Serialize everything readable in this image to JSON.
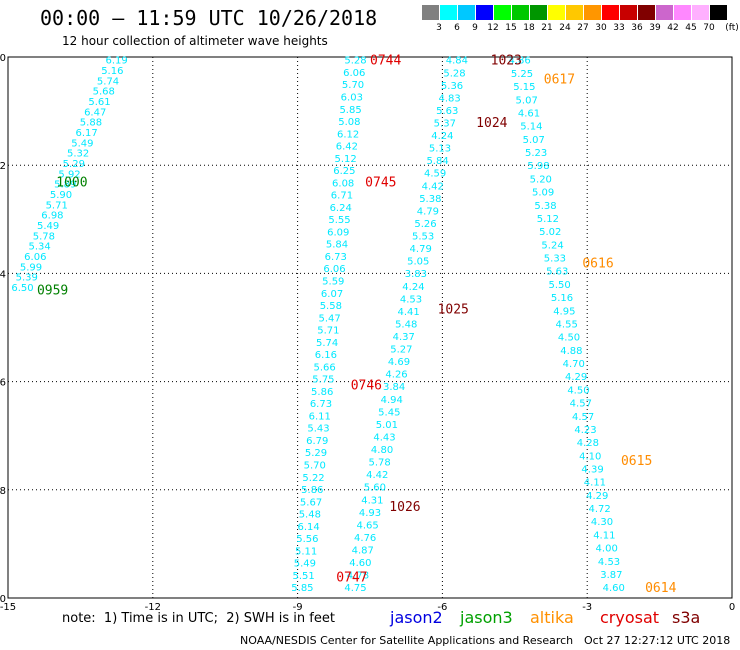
{
  "header": {
    "title": "00:00 – 11:59 UTC 10/26/2018",
    "subtitle": "12 hour collection of altimeter wave heights"
  },
  "color_scale": {
    "unit": "(ft)",
    "swatches": [
      {
        "color": "#808080",
        "label": "3"
      },
      {
        "color": "#00ffff",
        "label": "6"
      },
      {
        "color": "#00c8ff",
        "label": "9"
      },
      {
        "color": "#0000ff",
        "label": "12"
      },
      {
        "color": "#00ff00",
        "label": "15"
      },
      {
        "color": "#00c800",
        "label": "18"
      },
      {
        "color": "#009600",
        "label": "21"
      },
      {
        "color": "#ffff00",
        "label": "24"
      },
      {
        "color": "#ffc800",
        "label": "27"
      },
      {
        "color": "#ff9600",
        "label": "30"
      },
      {
        "color": "#ff0000",
        "label": "33"
      },
      {
        "color": "#c80000",
        "label": "36"
      },
      {
        "color": "#800000",
        "label": "39"
      },
      {
        "color": "#cc66cc",
        "label": "42"
      },
      {
        "color": "#ff88ff",
        "label": "45"
      },
      {
        "color": "#ffb0ff",
        "label": "70"
      },
      {
        "color": "#000000",
        "label": ""
      }
    ]
  },
  "chart_data": {
    "type": "scatter",
    "xlim": [
      -15,
      0
    ],
    "ylim": [
      -10,
      0
    ],
    "x_ticks": [
      "-15",
      "-12",
      "-9",
      "-6",
      "-3",
      "0"
    ],
    "y_ticks": [
      "0",
      "-2",
      "-4",
      "-6",
      "-8",
      "-10"
    ],
    "grid": true,
    "value_color": "#00e8ff",
    "tracks": [
      {
        "name": "track-a",
        "x_start": -12.75,
        "y_start": -0.05,
        "x_end": -14.7,
        "y_end": -4.25,
        "values": [
          "6.19",
          "5.16",
          "5.74",
          "5.68",
          "5.61",
          "6.47",
          "5.88",
          "6.17",
          "5.49",
          "5.32",
          "5.29",
          "5.92",
          "5.89",
          "5.90",
          "5.71",
          "6.98",
          "5.49",
          "5.78",
          "5.34",
          "6.06",
          "5.99",
          "5.39",
          "6.50"
        ]
      },
      {
        "name": "track-b",
        "x_start": -7.8,
        "y_start": -0.05,
        "x_end": -8.9,
        "y_end": -9.8,
        "values": [
          "5.28",
          "6.06",
          "5.70",
          "6.03",
          "5.85",
          "5.08",
          "6.12",
          "6.42",
          "5.12",
          "6.25",
          "6.08",
          "6.71",
          "6.24",
          "5.55",
          "6.09",
          "5.84",
          "6.73",
          "6.06",
          "5.59",
          "6.07",
          "5.58",
          "5.47",
          "5.71",
          "5.74",
          "6.16",
          "5.66",
          "5.75",
          "5.86",
          "6.73",
          "6.11",
          "5.43",
          "6.79",
          "5.29",
          "5.70",
          "5.22",
          "5.86",
          "5.67",
          "5.48",
          "6.14",
          "5.56",
          "5.11",
          "5.49",
          "5.51",
          "5.85"
        ]
      },
      {
        "name": "track-c",
        "x_start": -5.7,
        "y_start": -0.05,
        "x_end": -7.8,
        "y_end": -9.8,
        "values": [
          "4.84",
          "5.28",
          "5.36",
          "4.83",
          "5.63",
          "5.37",
          "4.24",
          "5.13",
          "5.84",
          "4.59",
          "4.42",
          "5.38",
          "4.79",
          "5.26",
          "5.53",
          "4.79",
          "5.05",
          "3.83",
          "4.24",
          "4.53",
          "4.41",
          "5.48",
          "4.37",
          "5.27",
          "4.69",
          "4.26",
          "3.84",
          "4.94",
          "5.45",
          "5.01",
          "4.43",
          "4.80",
          "5.78",
          "4.42",
          "5.60",
          "4.31",
          "4.93",
          "4.65",
          "4.76",
          "4.87",
          "4.60",
          "4.78",
          "4.75"
        ]
      },
      {
        "name": "track-d",
        "x_start": -4.4,
        "y_start": -0.05,
        "x_end": -2.45,
        "y_end": -9.8,
        "values": [
          "4.86",
          "5.25",
          "5.15",
          "5.07",
          "4.61",
          "5.14",
          "5.07",
          "5.23",
          "5.98",
          "5.20",
          "5.09",
          "5.38",
          "5.12",
          "5.02",
          "5.24",
          "5.33",
          "5.63",
          "5.50",
          "5.16",
          "4.95",
          "4.55",
          "4.50",
          "4.88",
          "4.70",
          "4.29",
          "4.50",
          "4.57",
          "4.57",
          "4.23",
          "4.28",
          "4.10",
          "4.39",
          "4.11",
          "4.29",
          "4.72",
          "4.30",
          "4.11",
          "4.00",
          "4.53",
          "3.87",
          "4.60"
        ]
      }
    ],
    "time_labels": [
      {
        "text": "0744",
        "x": -7.5,
        "y": -0.05,
        "color": "#e00000"
      },
      {
        "text": "0745",
        "x": -7.6,
        "y": -2.3,
        "color": "#e00000"
      },
      {
        "text": "0746",
        "x": -7.9,
        "y": -6.05,
        "color": "#e00000"
      },
      {
        "text": "0747",
        "x": -8.2,
        "y": -9.6,
        "color": "#e00000"
      },
      {
        "text": "1023",
        "x": -5.0,
        "y": -0.05,
        "color": "#800000"
      },
      {
        "text": "1024",
        "x": -5.3,
        "y": -1.2,
        "color": "#800000"
      },
      {
        "text": "1025",
        "x": -6.1,
        "y": -4.65,
        "color": "#800000"
      },
      {
        "text": "1026",
        "x": -7.1,
        "y": -8.3,
        "color": "#800000"
      },
      {
        "text": "1000",
        "x": -14.0,
        "y": -2.3,
        "color": "#008000"
      },
      {
        "text": "0959",
        "x": -14.4,
        "y": -4.3,
        "color": "#008000"
      },
      {
        "text": "0617",
        "x": -3.9,
        "y": -0.4,
        "color": "#ff8c00"
      },
      {
        "text": "0616",
        "x": -3.1,
        "y": -3.8,
        "color": "#ff8c00"
      },
      {
        "text": "0615",
        "x": -2.3,
        "y": -7.45,
        "color": "#ff8c00"
      },
      {
        "text": "0614",
        "x": -1.8,
        "y": -9.8,
        "color": "#ff8c00"
      }
    ]
  },
  "footer": {
    "note": "note:  1) Time is in UTC;  2) SWH is in feet",
    "legend": [
      {
        "name": "jason2",
        "color": "#0000e0"
      },
      {
        "name": "jason3",
        "color": "#00a000"
      },
      {
        "name": "altika",
        "color": "#ff9000"
      },
      {
        "name": "cryosat",
        "color": "#e00000"
      },
      {
        "name": "s3a",
        "color": "#800000"
      }
    ],
    "credit": "NOAA/NESDIS Center for Satellite Applications and Research",
    "timestamp": "Oct 27 12:27:12 UTC 2018"
  }
}
